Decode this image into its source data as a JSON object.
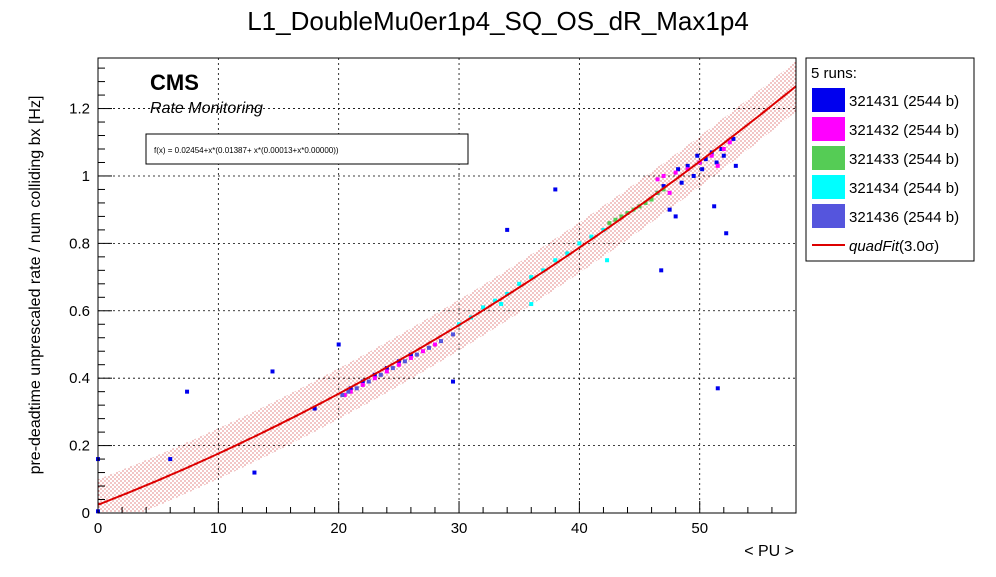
{
  "chart_data": {
    "type": "scatter",
    "title": "L1_DoubleMu0er1p4_SQ_OS_dR_Max1p4",
    "xlabel": "< PU >",
    "ylabel": "pre-deadtime unprescaled rate / num colliding bx [Hz]",
    "xlim": [
      0,
      58
    ],
    "ylim": [
      0,
      1.35
    ],
    "x_ticks": [
      "0",
      "10",
      "20",
      "30",
      "40",
      "50"
    ],
    "y_ticks": [
      "0",
      "0.2",
      "0.4",
      "0.6",
      "0.8",
      "1",
      "1.2"
    ],
    "grid": true,
    "cms_label": "CMS",
    "cms_sublabel": "Rate Monitoring",
    "fit_formula": "f(x) = 0.02454+x*(0.01387+ x*(0.00013+x*0.00000))",
    "fit": {
      "name": "quadFit",
      "sigma_label": "(3.0σ)",
      "coeffs": [
        0.02454,
        0.01387,
        0.00013
      ],
      "band_halfwidth": 0.075,
      "color": "#dd0000"
    },
    "legend": {
      "header": "5 runs:",
      "position": "right"
    },
    "series": [
      {
        "name": "321431 (2544 b)",
        "color": "#0000ee",
        "points": [
          [
            0,
            0.16
          ],
          [
            0,
            0.005
          ],
          [
            6,
            0.16
          ],
          [
            7.4,
            0.36
          ],
          [
            13,
            0.12
          ],
          [
            14.5,
            0.42
          ],
          [
            18,
            0.31
          ],
          [
            20,
            0.5
          ],
          [
            21,
            0.37
          ],
          [
            22,
            0.39
          ],
          [
            23,
            0.41
          ],
          [
            24,
            0.43
          ],
          [
            25,
            0.45
          ],
          [
            26,
            0.47
          ],
          [
            29.5,
            0.39
          ],
          [
            34,
            0.84
          ],
          [
            38,
            0.96
          ],
          [
            46.5,
            0.95
          ],
          [
            46.8,
            0.72
          ],
          [
            47.5,
            0.9
          ],
          [
            48,
            0.88
          ],
          [
            48.2,
            1.02
          ],
          [
            49,
            1.03
          ],
          [
            50,
            1.04
          ],
          [
            50.5,
            1.05
          ],
          [
            51,
            1.07
          ],
          [
            51.2,
            0.91
          ],
          [
            51.5,
            0.37
          ],
          [
            52,
            1.06
          ],
          [
            52.2,
            0.83
          ],
          [
            53,
            1.03
          ],
          [
            52.8,
            1.11
          ],
          [
            49.5,
            1.0
          ],
          [
            48.5,
            0.98
          ],
          [
            50.2,
            1.02
          ],
          [
            51.8,
            1.08
          ],
          [
            47,
            0.97
          ],
          [
            49.8,
            1.06
          ],
          [
            51.4,
            1.04
          ]
        ]
      },
      {
        "name": "321432 (2544 b)",
        "color": "#ff00ff",
        "points": [
          [
            46.5,
            0.99
          ],
          [
            47,
            1.0
          ],
          [
            48,
            1.01
          ],
          [
            49,
            1.02
          ],
          [
            50,
            1.04
          ],
          [
            51,
            1.06
          ],
          [
            52,
            1.08
          ],
          [
            52.5,
            1.1
          ],
          [
            47.5,
            0.95
          ],
          [
            51.5,
            1.03
          ],
          [
            20.5,
            0.35
          ],
          [
            21,
            0.36
          ],
          [
            22,
            0.38
          ],
          [
            23,
            0.4
          ],
          [
            24,
            0.42
          ],
          [
            25,
            0.44
          ],
          [
            26,
            0.46
          ],
          [
            27,
            0.48
          ],
          [
            28,
            0.5
          ]
        ]
      },
      {
        "name": "321433 (2544 b)",
        "color": "#55cc55",
        "points": [
          [
            42.5,
            0.86
          ],
          [
            43,
            0.87
          ],
          [
            43.5,
            0.88
          ],
          [
            44,
            0.89
          ],
          [
            44.5,
            0.9
          ],
          [
            45,
            0.91
          ],
          [
            45.5,
            0.92
          ],
          [
            46,
            0.93
          ],
          [
            46.5,
            0.95
          ],
          [
            47,
            0.96
          ]
        ]
      },
      {
        "name": "321434 (2544 b)",
        "color": "#00ffff",
        "points": [
          [
            30,
            0.56
          ],
          [
            31,
            0.58
          ],
          [
            32,
            0.61
          ],
          [
            33,
            0.63
          ],
          [
            34,
            0.65
          ],
          [
            35,
            0.68
          ],
          [
            36,
            0.7
          ],
          [
            37,
            0.72
          ],
          [
            38,
            0.75
          ],
          [
            39,
            0.77
          ],
          [
            40,
            0.8
          ],
          [
            41,
            0.82
          ],
          [
            42,
            0.84
          ],
          [
            42.3,
            0.75
          ],
          [
            36,
            0.62
          ],
          [
            33.5,
            0.62
          ]
        ]
      },
      {
        "name": "321436 (2544 b)",
        "color": "#5555dd",
        "points": [
          [
            20.3,
            0.35
          ],
          [
            20.8,
            0.36
          ],
          [
            21.5,
            0.37
          ],
          [
            22.5,
            0.39
          ],
          [
            23.5,
            0.41
          ],
          [
            24.5,
            0.43
          ],
          [
            25.5,
            0.45
          ],
          [
            26.5,
            0.47
          ],
          [
            27.5,
            0.49
          ],
          [
            28.5,
            0.51
          ],
          [
            29.5,
            0.53
          ]
        ]
      }
    ]
  }
}
